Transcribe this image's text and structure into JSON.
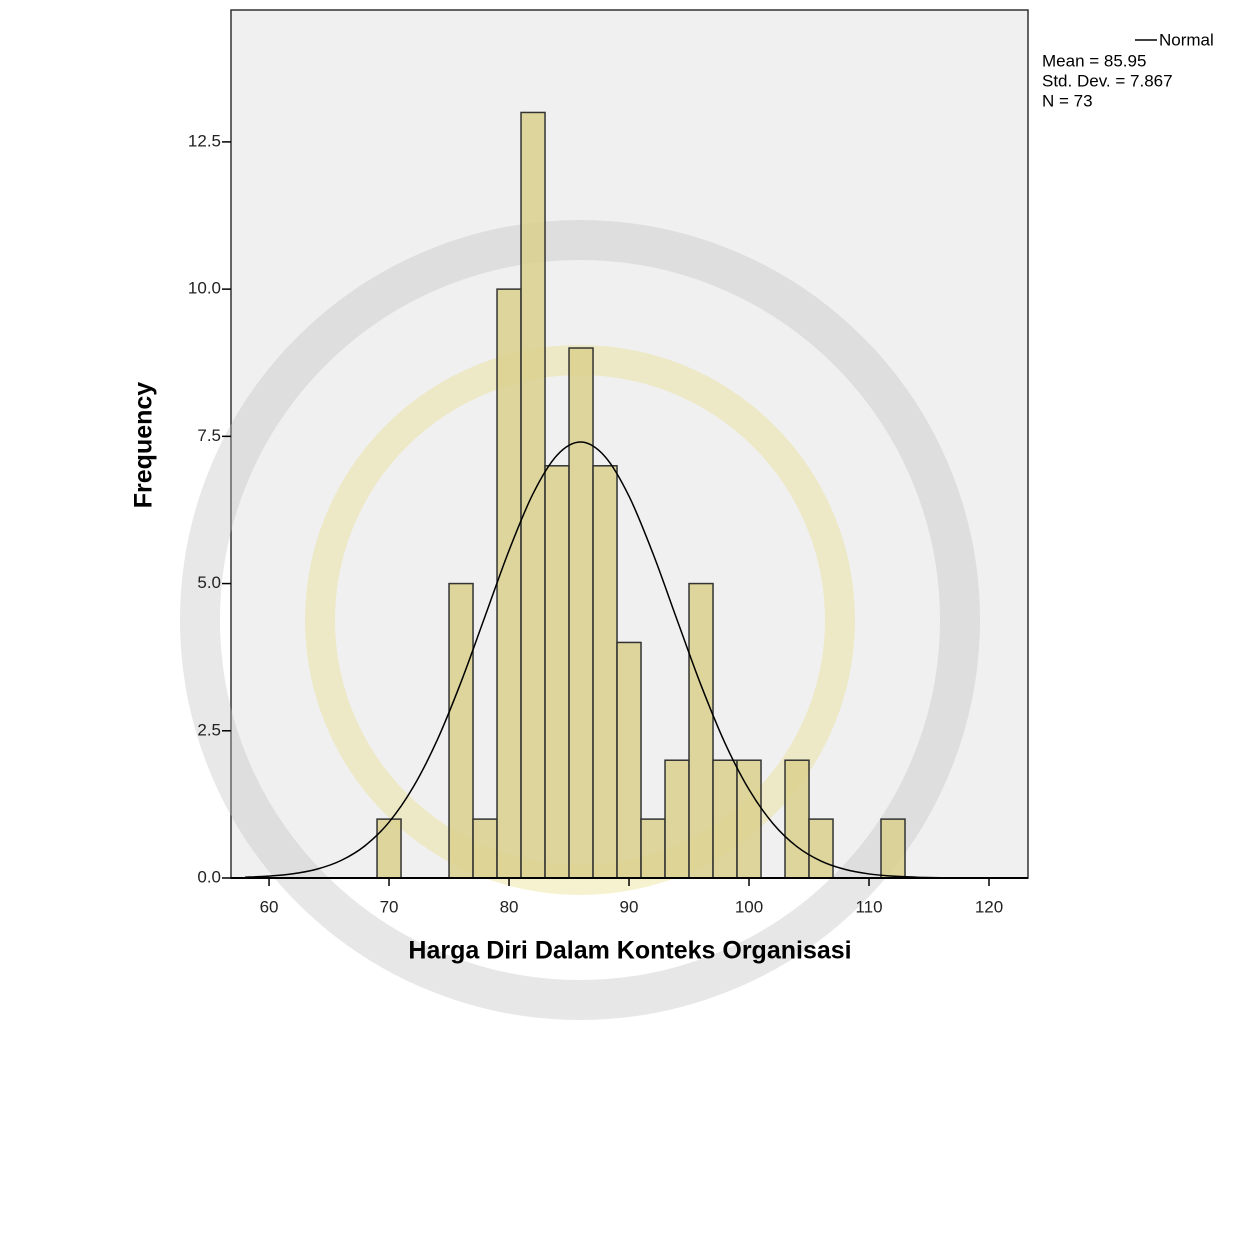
{
  "chart_data": {
    "type": "histogram",
    "x_label": "Harga Diri Dalam Konteks Organisasi",
    "y_label": "Frequency",
    "bins": [
      69,
      71,
      73,
      75,
      77,
      79,
      81,
      83,
      85,
      87,
      89,
      91,
      93,
      95,
      97,
      99,
      101,
      103,
      105,
      107,
      109,
      111,
      113
    ],
    "values": [
      1,
      0,
      0,
      5,
      1,
      10,
      13,
      7,
      9,
      7,
      4,
      1,
      2,
      5,
      2,
      2,
      0,
      2,
      1,
      0,
      0,
      1
    ],
    "color": "#d9d08c",
    "curve": {
      "name": "Normal",
      "color": "#000000",
      "x": [
        58,
        60,
        62,
        64,
        66,
        68,
        70,
        72,
        74,
        76,
        78,
        80,
        82,
        84,
        86,
        88,
        90,
        92,
        94,
        96,
        98,
        100,
        102,
        104,
        106,
        108,
        110,
        112,
        114,
        116,
        118,
        120
      ],
      "values": [
        0.013,
        0.032,
        0.072,
        0.151,
        0.297,
        0.548,
        0.948,
        1.538,
        2.335,
        3.327,
        4.443,
        5.562,
        6.526,
        7.179,
        7.403,
        7.156,
        6.484,
        5.508,
        4.386,
        3.274,
        2.29,
        1.502,
        0.924,
        0.532,
        0.288,
        0.146,
        0.069,
        0.031,
        0.013,
        0.005,
        0.002,
        0.001
      ]
    },
    "annotations": [
      "Mean = 85.95",
      "Std. Dev. = 7.867",
      "N = 73"
    ],
    "xlim": [
      56.83,
      123.25
    ],
    "ylim": [
      0,
      14.74
    ],
    "xticks": [
      60,
      70,
      80,
      90,
      100,
      110,
      120
    ],
    "yticks": [
      {
        "value": 0,
        "label": "0.0"
      },
      2.5,
      {
        "value": 5,
        "label": "5.0"
      },
      7.5,
      {
        "value": 10,
        "label": "10.0"
      },
      12.5
    ]
  }
}
